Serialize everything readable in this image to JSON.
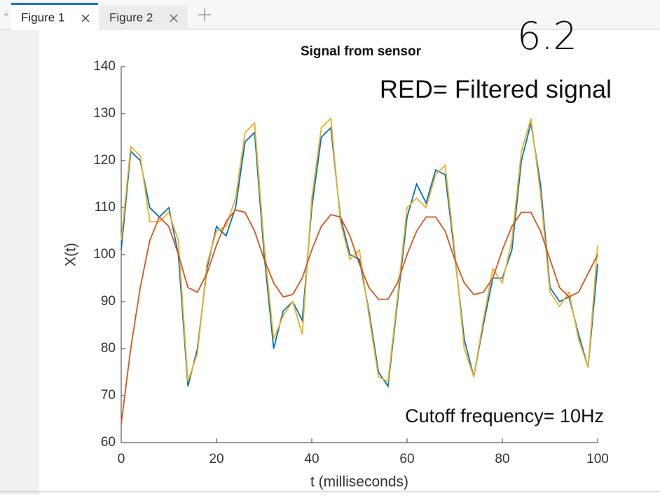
{
  "tabs": [
    "Figure 1",
    "Figure 2"
  ],
  "handwriting": "6.2",
  "chart_data": {
    "type": "line",
    "title": "Signal from sensor",
    "xlabel": "t (milliseconds)",
    "ylabel": "X(t)",
    "annotations": [
      "RED= Filtered signal",
      "Cutoff frequency= 10Hz"
    ],
    "x": [
      0,
      2,
      4,
      6,
      8,
      10,
      12,
      14,
      16,
      18,
      20,
      22,
      24,
      26,
      28,
      30,
      32,
      34,
      36,
      38,
      40,
      42,
      44,
      46,
      48,
      50,
      52,
      54,
      56,
      58,
      60,
      62,
      64,
      66,
      68,
      70,
      72,
      74,
      76,
      78,
      80,
      82,
      84,
      86,
      88,
      90,
      92,
      94,
      96,
      98,
      100
    ],
    "series": [
      {
        "color": "#0072bd",
        "values": [
          101,
          122,
          120,
          110,
          108,
          110,
          100,
          72,
          80,
          97,
          106,
          104,
          110,
          124,
          126,
          100,
          80,
          88,
          90,
          86,
          110,
          125,
          127,
          108,
          100,
          99,
          88,
          75,
          72,
          90,
          108,
          115,
          111,
          118,
          117,
          100,
          82,
          74,
          85,
          95,
          95,
          101,
          120,
          128,
          115,
          93,
          90,
          91,
          83,
          76,
          98
        ]
      },
      {
        "color": "#edb120",
        "values": [
          103,
          123,
          121,
          107,
          107,
          109,
          103,
          73,
          79,
          98,
          105,
          106,
          112,
          126,
          128,
          102,
          82,
          87,
          90,
          83,
          112,
          127,
          129,
          107,
          99,
          101,
          87,
          74,
          73,
          91,
          110,
          112,
          110,
          117,
          119,
          101,
          80,
          74,
          86,
          97,
          94,
          103,
          122,
          129,
          113,
          92,
          89,
          92,
          82,
          76,
          102
        ]
      },
      {
        "color": "#d95319",
        "values": [
          64,
          80,
          93,
          103,
          108,
          106,
          100,
          93,
          92,
          96,
          102,
          107,
          109.5,
          109,
          105,
          99,
          94,
          91,
          91.5,
          95,
          101,
          106,
          108.5,
          108,
          104,
          98,
          93,
          90.5,
          90.5,
          94,
          100,
          105,
          108,
          108,
          105,
          99,
          94,
          91.5,
          92,
          95,
          101,
          106,
          109,
          109,
          105,
          99,
          93,
          91,
          92,
          96,
          100
        ]
      }
    ],
    "xlim": [
      0,
      100
    ],
    "xticks": [
      0,
      20,
      40,
      60,
      80,
      100
    ],
    "ylim": [
      60,
      140
    ],
    "yticks": [
      60,
      70,
      80,
      90,
      100,
      110,
      120,
      130,
      140
    ]
  }
}
